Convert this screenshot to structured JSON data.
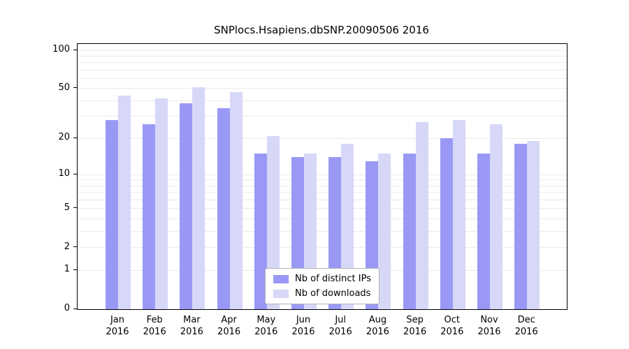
{
  "chart_data": {
    "type": "bar",
    "title": "SNPlocs.Hsapiens.dbSNP.20090506 2016",
    "categories": [
      "Jan",
      "Feb",
      "Mar",
      "Apr",
      "May",
      "Jun",
      "Jul",
      "Aug",
      "Sep",
      "Oct",
      "Nov",
      "Dec"
    ],
    "year_label": "2016",
    "series": [
      {
        "name": "Nb of distinct IPs",
        "color": "#9999f5",
        "values": [
          28,
          26,
          38,
          35,
          15,
          14,
          14,
          13,
          15,
          20,
          15,
          18
        ]
      },
      {
        "name": "Nb of downloads",
        "color": "#d7d7f8",
        "values": [
          44,
          42,
          51,
          47,
          21,
          15,
          18,
          15,
          27,
          28,
          26,
          19
        ]
      }
    ],
    "yscale": "log1p",
    "yticks": [
      0,
      1,
      2,
      5,
      10,
      20,
      50,
      100
    ],
    "minor_gridlines": [
      1,
      2,
      3,
      4,
      5,
      6,
      7,
      8,
      9,
      10,
      20,
      30,
      40,
      50,
      60,
      70,
      80,
      90,
      100
    ],
    "ylim": [
      0,
      110
    ],
    "xlabel": "",
    "ylabel": "",
    "grid": true,
    "legend_position": "bottom-center"
  }
}
